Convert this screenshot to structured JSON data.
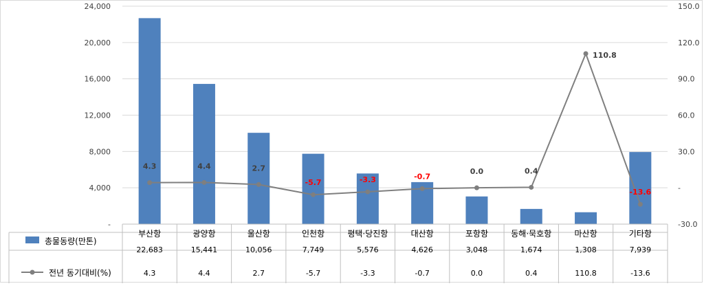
{
  "chart_data": {
    "type": "bar",
    "categories": [
      "부산항",
      "광양항",
      "울산항",
      "인천항",
      "평택·당진항",
      "대산항",
      "포항항",
      "동해·묵호항",
      "마산항",
      "기타항"
    ],
    "series": [
      {
        "name": "총물동량(만톤)",
        "type": "bar",
        "axis": "left",
        "color": "#4f81bd",
        "values": [
          22683,
          15441,
          10056,
          7749,
          5576,
          4626,
          3048,
          1674,
          1308,
          7939
        ],
        "table_values": [
          "22,683",
          "15,441",
          "10,056",
          "7,749",
          "5,576",
          "4,626",
          "3,048",
          "1,674",
          "1,308",
          "7,939"
        ]
      },
      {
        "name": "전년 동기대비(%)",
        "type": "line",
        "axis": "right",
        "color": "#7f7f7f",
        "values": [
          4.3,
          4.4,
          2.7,
          -5.7,
          -3.3,
          -0.7,
          0.0,
          0.4,
          110.8,
          -13.6
        ],
        "point_labels": [
          "4.3",
          "4.4",
          "2.7",
          "-5.7",
          "-3.3",
          "-0.7",
          "0.0",
          "0.4",
          "110.8",
          "-13.6"
        ],
        "table_values": [
          "4.3",
          "4.4",
          "2.7",
          "-5.7",
          "-3.3",
          "-0.7",
          "0.0",
          "0.4",
          "110.8",
          "-13.6"
        ]
      }
    ],
    "left_axis": {
      "ylim": [
        0,
        24000
      ],
      "ticks": [
        0,
        4000,
        8000,
        12000,
        16000,
        20000,
        24000
      ],
      "tick_labels": [
        "-",
        "4,000",
        "8,000",
        "12,000",
        "16,000",
        "20,000",
        "24,000"
      ]
    },
    "right_axis": {
      "ylim": [
        -30,
        150
      ],
      "ticks": [
        -30,
        0,
        30,
        60,
        90,
        120,
        150
      ],
      "tick_labels": [
        "-30.0",
        "-",
        "30.0",
        "60.0",
        "90.0",
        "120.0",
        "150.0"
      ]
    },
    "negative_label_color": "#ff0000",
    "positive_label_color": "#404040",
    "grid": "horizontal",
    "legend": "data-table"
  }
}
